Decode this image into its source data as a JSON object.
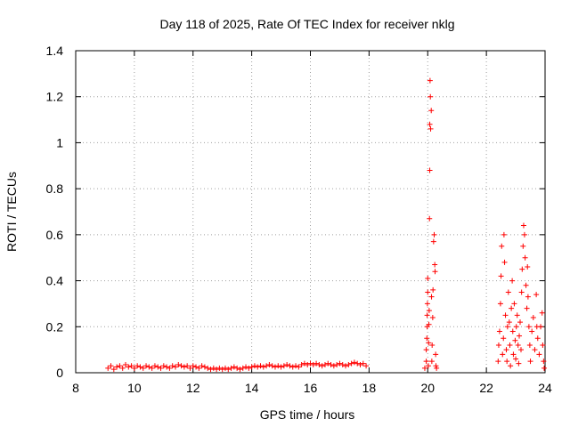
{
  "chart_data": {
    "type": "scatter",
    "title": "Day 118 of 2025, Rate Of TEC Index for receiver nklg",
    "xlabel": "GPS time / hours",
    "ylabel": "ROTI / TECUs",
    "xlim": [
      8,
      24
    ],
    "ylim": [
      0,
      1.4
    ],
    "x_ticks": [
      "8",
      "10",
      "12",
      "14",
      "16",
      "18",
      "20",
      "22",
      "24"
    ],
    "y_ticks": [
      "0",
      "0.2",
      "0.4",
      "0.6",
      "0.8",
      "1",
      "1.2",
      "1.4"
    ],
    "grid": true,
    "marker": "+",
    "color": "#ff0000",
    "series": [
      {
        "points": [
          [
            9.1,
            0.02
          ],
          [
            9.2,
            0.03
          ],
          [
            9.3,
            0.015
          ],
          [
            9.4,
            0.025
          ],
          [
            9.5,
            0.03
          ],
          [
            9.6,
            0.02
          ],
          [
            9.7,
            0.035
          ],
          [
            9.8,
            0.025
          ],
          [
            9.9,
            0.03
          ],
          [
            10.0,
            0.02
          ],
          [
            10.1,
            0.03
          ],
          [
            10.2,
            0.025
          ],
          [
            10.3,
            0.02
          ],
          [
            10.4,
            0.03
          ],
          [
            10.5,
            0.025
          ],
          [
            10.6,
            0.02
          ],
          [
            10.7,
            0.03
          ],
          [
            10.8,
            0.025
          ],
          [
            10.9,
            0.02
          ],
          [
            11.0,
            0.03
          ],
          [
            11.1,
            0.025
          ],
          [
            11.2,
            0.02
          ],
          [
            11.3,
            0.03
          ],
          [
            11.4,
            0.025
          ],
          [
            11.5,
            0.035
          ],
          [
            11.6,
            0.03
          ],
          [
            11.7,
            0.025
          ],
          [
            11.8,
            0.03
          ],
          [
            11.9,
            0.02
          ],
          [
            12.0,
            0.03
          ],
          [
            12.1,
            0.025
          ],
          [
            12.2,
            0.02
          ],
          [
            12.3,
            0.03
          ],
          [
            12.4,
            0.025
          ],
          [
            12.5,
            0.02
          ],
          [
            12.6,
            0.015
          ],
          [
            12.7,
            0.02
          ],
          [
            12.8,
            0.015
          ],
          [
            12.9,
            0.02
          ],
          [
            13.0,
            0.015
          ],
          [
            13.1,
            0.02
          ],
          [
            13.2,
            0.015
          ],
          [
            13.3,
            0.02
          ],
          [
            13.4,
            0.025
          ],
          [
            13.5,
            0.02
          ],
          [
            13.6,
            0.015
          ],
          [
            13.7,
            0.02
          ],
          [
            13.8,
            0.025
          ],
          [
            13.9,
            0.02
          ],
          [
            14.0,
            0.025
          ],
          [
            14.1,
            0.03
          ],
          [
            14.2,
            0.025
          ],
          [
            14.3,
            0.03
          ],
          [
            14.4,
            0.025
          ],
          [
            14.5,
            0.03
          ],
          [
            14.6,
            0.035
          ],
          [
            14.7,
            0.03
          ],
          [
            14.8,
            0.025
          ],
          [
            14.9,
            0.03
          ],
          [
            15.0,
            0.025
          ],
          [
            15.1,
            0.03
          ],
          [
            15.2,
            0.035
          ],
          [
            15.3,
            0.03
          ],
          [
            15.4,
            0.025
          ],
          [
            15.5,
            0.03
          ],
          [
            15.6,
            0.025
          ],
          [
            15.7,
            0.035
          ],
          [
            15.8,
            0.04
          ],
          [
            15.9,
            0.035
          ],
          [
            16.0,
            0.04
          ],
          [
            16.1,
            0.035
          ],
          [
            16.2,
            0.04
          ],
          [
            16.3,
            0.035
          ],
          [
            16.4,
            0.03
          ],
          [
            16.5,
            0.035
          ],
          [
            16.6,
            0.04
          ],
          [
            16.7,
            0.035
          ],
          [
            16.8,
            0.03
          ],
          [
            16.9,
            0.035
          ],
          [
            17.0,
            0.04
          ],
          [
            17.1,
            0.035
          ],
          [
            17.2,
            0.03
          ],
          [
            17.3,
            0.035
          ],
          [
            17.4,
            0.04
          ],
          [
            17.5,
            0.045
          ],
          [
            17.6,
            0.04
          ],
          [
            17.7,
            0.035
          ],
          [
            17.8,
            0.04
          ],
          [
            17.9,
            0.03
          ],
          [
            19.9,
            0.02
          ],
          [
            19.95,
            0.05
          ],
          [
            19.95,
            0.1
          ],
          [
            19.97,
            0.15
          ],
          [
            19.98,
            0.2
          ],
          [
            19.98,
            0.25
          ],
          [
            19.99,
            0.3
          ],
          [
            20.0,
            0.35
          ],
          [
            20.0,
            0.41
          ],
          [
            20.02,
            0.03
          ],
          [
            20.03,
            0.13
          ],
          [
            20.04,
            0.21
          ],
          [
            20.05,
            0.27
          ],
          [
            20.06,
            0.67
          ],
          [
            20.07,
            0.88
          ],
          [
            20.07,
            1.08
          ],
          [
            20.08,
            1.27
          ],
          [
            20.09,
            1.2
          ],
          [
            20.1,
            1.06
          ],
          [
            20.12,
            1.14
          ],
          [
            20.13,
            0.33
          ],
          [
            20.14,
            0.05
          ],
          [
            20.15,
            0.12
          ],
          [
            20.17,
            0.24
          ],
          [
            20.18,
            0.36
          ],
          [
            20.2,
            0.57
          ],
          [
            20.22,
            0.6
          ],
          [
            20.24,
            0.47
          ],
          [
            20.25,
            0.44
          ],
          [
            20.27,
            0.08
          ],
          [
            20.28,
            0.03
          ],
          [
            20.3,
            0.02
          ],
          [
            22.4,
            0.05
          ],
          [
            22.42,
            0.12
          ],
          [
            22.45,
            0.18
          ],
          [
            22.48,
            0.3
          ],
          [
            22.5,
            0.42
          ],
          [
            22.52,
            0.55
          ],
          [
            22.55,
            0.08
          ],
          [
            22.58,
            0.15
          ],
          [
            22.6,
            0.6
          ],
          [
            22.62,
            0.48
          ],
          [
            22.65,
            0.25
          ],
          [
            22.68,
            0.1
          ],
          [
            22.7,
            0.05
          ],
          [
            22.72,
            0.2
          ],
          [
            22.75,
            0.35
          ],
          [
            22.78,
            0.22
          ],
          [
            22.8,
            0.12
          ],
          [
            22.82,
            0.03
          ],
          [
            22.85,
            0.28
          ],
          [
            22.88,
            0.4
          ],
          [
            22.9,
            0.18
          ],
          [
            22.92,
            0.08
          ],
          [
            22.95,
            0.3
          ],
          [
            22.98,
            0.14
          ],
          [
            23.0,
            0.06
          ],
          [
            23.02,
            0.2
          ],
          [
            23.05,
            0.25
          ],
          [
            23.08,
            0.12
          ],
          [
            23.1,
            0.04
          ],
          [
            23.12,
            0.16
          ],
          [
            23.15,
            0.22
          ],
          [
            23.18,
            0.1
          ],
          [
            23.2,
            0.35
          ],
          [
            23.22,
            0.45
          ],
          [
            23.25,
            0.55
          ],
          [
            23.27,
            0.64
          ],
          [
            23.3,
            0.6
          ],
          [
            23.32,
            0.5
          ],
          [
            23.35,
            0.38
          ],
          [
            23.38,
            0.28
          ],
          [
            23.4,
            0.46
          ],
          [
            23.42,
            0.33
          ],
          [
            23.45,
            0.2
          ],
          [
            23.48,
            0.12
          ],
          [
            23.5,
            0.05
          ],
          [
            23.55,
            0.18
          ],
          [
            23.6,
            0.24
          ],
          [
            23.65,
            0.1
          ],
          [
            23.7,
            0.34
          ],
          [
            23.72,
            0.2
          ],
          [
            23.75,
            0.15
          ],
          [
            23.8,
            0.08
          ],
          [
            23.85,
            0.2
          ],
          [
            23.9,
            0.26
          ],
          [
            23.92,
            0.12
          ],
          [
            23.95,
            0.05
          ],
          [
            23.97,
            0.02
          ]
        ]
      }
    ]
  }
}
